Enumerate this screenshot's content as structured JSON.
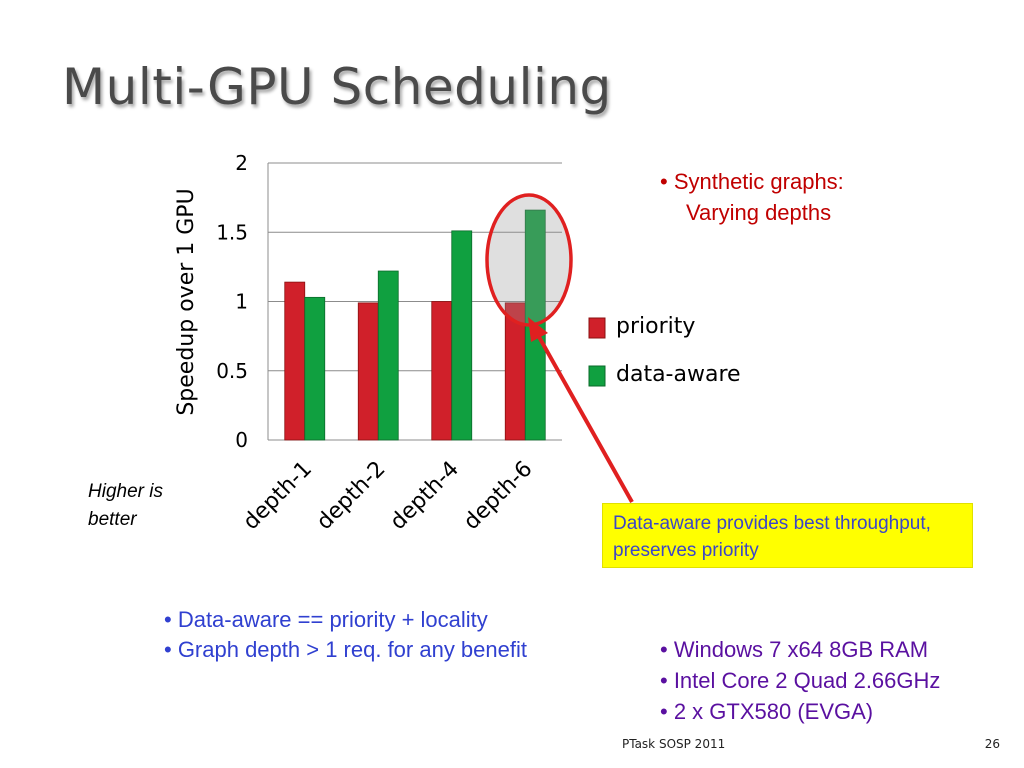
{
  "slide": {
    "title": "Multi-GPU Scheduling",
    "higher_is_better": "Higher is better",
    "right_bullets": [
      {
        "text": "• Synthetic graphs:"
      },
      {
        "text": "Varying depths"
      }
    ],
    "callout": "Data-aware provides best throughput, preserves priority",
    "blue_bullets": [
      "• Data-aware == priority + locality",
      "• Graph depth > 1 req. for any benefit"
    ],
    "purple_bullets": [
      "• Windows 7 x64 8GB RAM",
      "• Intel Core 2 Quad 2.66GHz",
      "• 2 x GTX580 (EVGA)"
    ],
    "footer": "PTask SOSP 2011",
    "page_number": "26"
  },
  "colors": {
    "priority": "#d0202a",
    "data_aware": "#10a040",
    "highlight_ellipse": "#e02020",
    "callout_bg": "#ffff00"
  },
  "chart_data": {
    "type": "bar",
    "ylabel": "Speedup over 1 GPU",
    "xlabel": "",
    "categories": [
      "depth-1",
      "depth-2",
      "depth-4",
      "depth-6"
    ],
    "series": [
      {
        "name": "priority",
        "values": [
          1.14,
          0.99,
          1.0,
          0.99
        ]
      },
      {
        "name": "data-aware",
        "values": [
          1.03,
          1.22,
          1.51,
          1.66
        ]
      }
    ],
    "ylim": [
      0,
      2
    ],
    "yticks": [
      "0",
      "0.5",
      "1",
      "1.5",
      "2"
    ],
    "grid": true,
    "legend_position": "right"
  }
}
